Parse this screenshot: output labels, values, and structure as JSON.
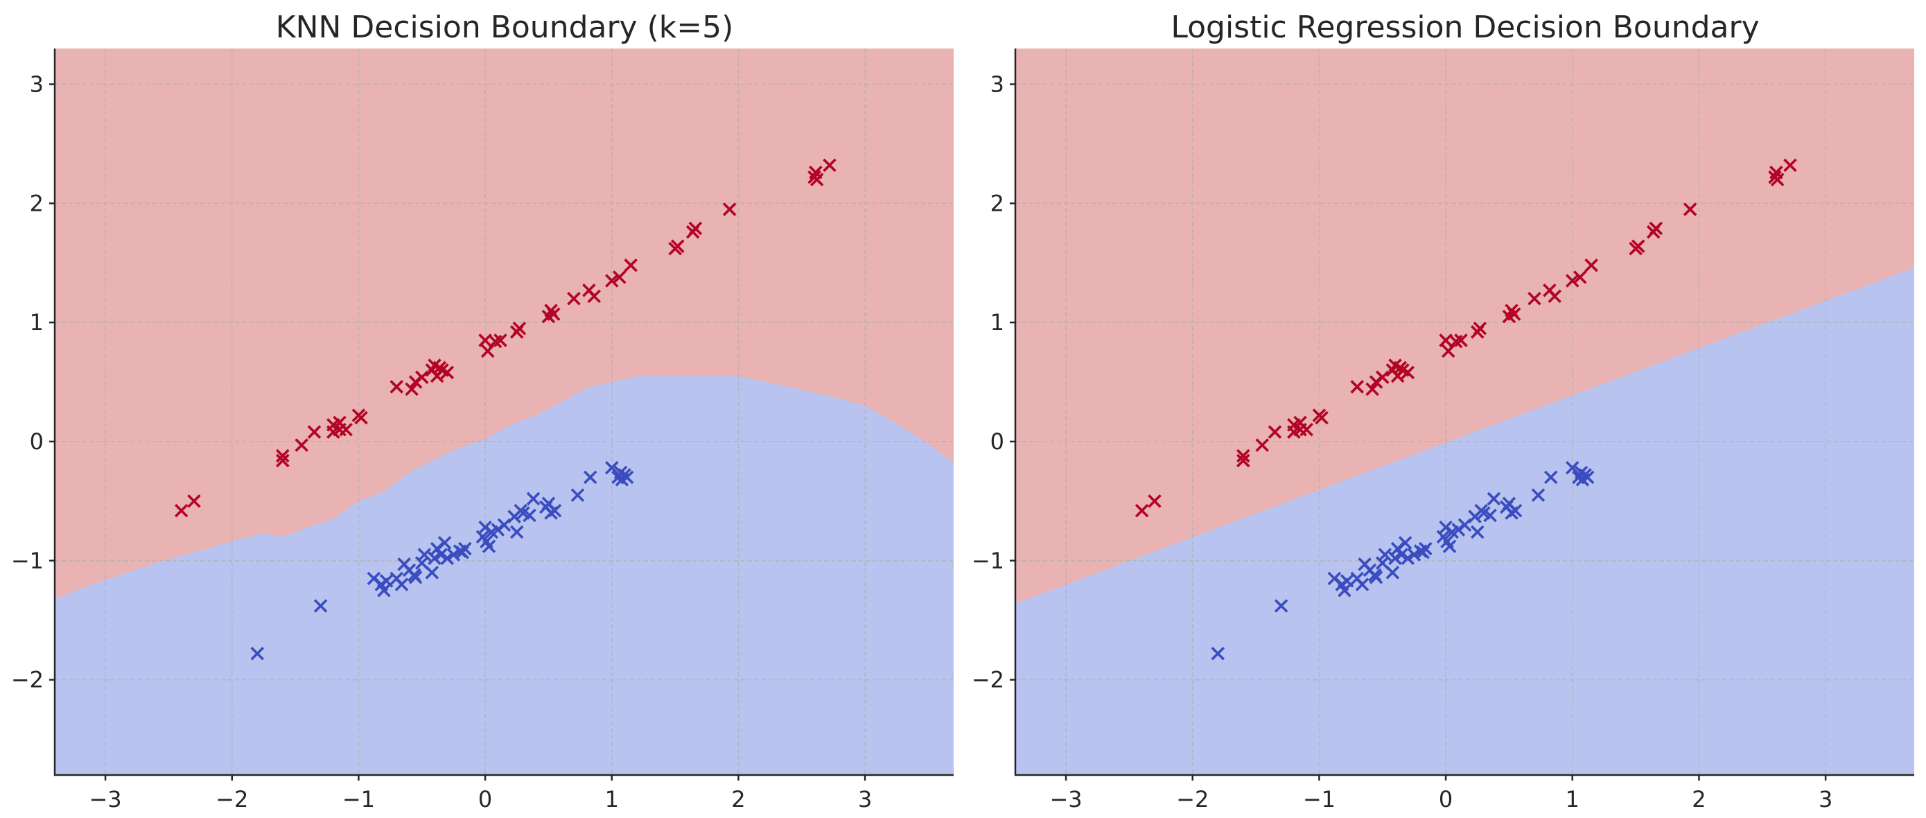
{
  "chart_data": [
    {
      "type": "scatter",
      "title": "KNN Decision Boundary (k=5)",
      "xlabel": "",
      "ylabel": "",
      "xlim": [
        -3.4,
        3.7
      ],
      "ylim": [
        -2.8,
        3.3
      ],
      "xticks": [
        -3,
        -2,
        -1,
        0,
        1,
        2,
        3
      ],
      "yticks": [
        -2,
        -1,
        0,
        1,
        2,
        3
      ],
      "xtick_labels": [
        "−3",
        "−2",
        "−1",
        "0",
        "1",
        "2",
        "3"
      ],
      "ytick_labels": [
        "−2",
        "−1",
        "0",
        "1",
        "2",
        "3"
      ],
      "grid": true,
      "region_colors": {
        "upper": "#e8b3b2",
        "lower": "#b8c4ef"
      },
      "boundary": [
        [
          -3.4,
          -1.32
        ],
        [
          -3.0,
          -1.16
        ],
        [
          -2.6,
          -1.02
        ],
        [
          -2.2,
          -0.9
        ],
        [
          -1.95,
          -0.82
        ],
        [
          -1.75,
          -0.77
        ],
        [
          -1.6,
          -0.8
        ],
        [
          -1.4,
          -0.72
        ],
        [
          -1.2,
          -0.65
        ],
        [
          -1.0,
          -0.5
        ],
        [
          -0.8,
          -0.42
        ],
        [
          -0.6,
          -0.26
        ],
        [
          -0.4,
          -0.15
        ],
        [
          -0.2,
          -0.05
        ],
        [
          0.0,
          0.02
        ],
        [
          0.2,
          0.14
        ],
        [
          0.4,
          0.22
        ],
        [
          0.6,
          0.33
        ],
        [
          0.8,
          0.45
        ],
        [
          1.0,
          0.5
        ],
        [
          1.2,
          0.55
        ],
        [
          1.6,
          0.55
        ],
        [
          2.0,
          0.55
        ],
        [
          2.4,
          0.46
        ],
        [
          2.8,
          0.36
        ],
        [
          3.0,
          0.3
        ],
        [
          3.2,
          0.18
        ],
        [
          3.4,
          0.05
        ],
        [
          3.55,
          -0.06
        ],
        [
          3.7,
          -0.18
        ]
      ]
    },
    {
      "type": "scatter",
      "title": "Logistic Regression Decision Boundary",
      "xlabel": "",
      "ylabel": "",
      "xlim": [
        -3.4,
        3.7
      ],
      "ylim": [
        -2.8,
        3.3
      ],
      "xticks": [
        -3,
        -2,
        -1,
        0,
        1,
        2,
        3
      ],
      "yticks": [
        -2,
        -1,
        0,
        1,
        2,
        3
      ],
      "xtick_labels": [
        "−3",
        "−2",
        "−1",
        "0",
        "1",
        "2",
        "3"
      ],
      "ytick_labels": [
        "−2",
        "−1",
        "0",
        "1",
        "2",
        "3"
      ],
      "grid": true,
      "region_colors": {
        "upper": "#e8b3b2",
        "lower": "#b8c4ef"
      },
      "boundary": [
        [
          -3.4,
          -1.36
        ],
        [
          3.7,
          1.46
        ]
      ]
    }
  ],
  "marker": "x",
  "point_classes": [
    {
      "class": 1,
      "color": "#b40426",
      "points": [
        [
          -2.4,
          -0.58
        ],
        [
          -2.3,
          -0.5
        ],
        [
          -1.6,
          -0.12
        ],
        [
          -1.6,
          -0.16
        ],
        [
          -1.45,
          -0.03
        ],
        [
          -1.35,
          0.08
        ],
        [
          -1.2,
          0.14
        ],
        [
          -1.2,
          0.08
        ],
        [
          -1.15,
          0.16
        ],
        [
          -1.15,
          0.1
        ],
        [
          -1.1,
          0.1
        ],
        [
          -1.0,
          0.22
        ],
        [
          -0.98,
          0.2
        ],
        [
          -0.7,
          0.46
        ],
        [
          -0.58,
          0.44
        ],
        [
          -0.55,
          0.5
        ],
        [
          -0.5,
          0.54
        ],
        [
          -0.42,
          0.6
        ],
        [
          -0.4,
          0.64
        ],
        [
          -0.38,
          0.55
        ],
        [
          -0.36,
          0.62
        ],
        [
          -0.34,
          0.6
        ],
        [
          -0.3,
          0.58
        ],
        [
          0.0,
          0.85
        ],
        [
          0.02,
          0.76
        ],
        [
          0.08,
          0.84
        ],
        [
          0.12,
          0.85
        ],
        [
          0.25,
          0.92
        ],
        [
          0.27,
          0.95
        ],
        [
          0.5,
          1.05
        ],
        [
          0.52,
          1.1
        ],
        [
          0.54,
          1.07
        ],
        [
          0.7,
          1.2
        ],
        [
          0.82,
          1.27
        ],
        [
          0.86,
          1.22
        ],
        [
          1.0,
          1.35
        ],
        [
          1.06,
          1.38
        ],
        [
          1.15,
          1.48
        ],
        [
          1.5,
          1.62
        ],
        [
          1.52,
          1.64
        ],
        [
          1.64,
          1.76
        ],
        [
          1.66,
          1.79
        ],
        [
          1.93,
          1.95
        ],
        [
          2.6,
          2.22
        ],
        [
          2.61,
          2.26
        ],
        [
          2.62,
          2.2
        ],
        [
          2.72,
          2.32
        ]
      ]
    },
    {
      "class": 0,
      "color": "#3b4cc0",
      "points": [
        [
          -1.8,
          -1.78
        ],
        [
          -1.3,
          -1.38
        ],
        [
          -0.88,
          -1.15
        ],
        [
          -0.82,
          -1.2
        ],
        [
          -0.8,
          -1.25
        ],
        [
          -0.78,
          -1.17
        ],
        [
          -0.7,
          -1.15
        ],
        [
          -0.66,
          -1.2
        ],
        [
          -0.64,
          -1.03
        ],
        [
          -0.6,
          -1.08
        ],
        [
          -0.56,
          -1.12
        ],
        [
          -0.55,
          -1.14
        ],
        [
          -0.5,
          -1.02
        ],
        [
          -0.48,
          -0.95
        ],
        [
          -0.42,
          -1.1
        ],
        [
          -0.4,
          -0.98
        ],
        [
          -0.38,
          -0.9
        ],
        [
          -0.35,
          -0.95
        ],
        [
          -0.32,
          -0.85
        ],
        [
          -0.3,
          -0.98
        ],
        [
          -0.25,
          -0.95
        ],
        [
          -0.2,
          -0.92
        ],
        [
          -0.18,
          -0.93
        ],
        [
          -0.16,
          -0.9
        ],
        [
          -0.02,
          -0.8
        ],
        [
          0.0,
          -0.72
        ],
        [
          0.01,
          -0.84
        ],
        [
          0.03,
          -0.88
        ],
        [
          0.05,
          -0.76
        ],
        [
          0.1,
          -0.74
        ],
        [
          0.15,
          -0.7
        ],
        [
          0.23,
          -0.63
        ],
        [
          0.25,
          -0.76
        ],
        [
          0.28,
          -0.58
        ],
        [
          0.3,
          -0.6
        ],
        [
          0.35,
          -0.62
        ],
        [
          0.38,
          -0.48
        ],
        [
          0.48,
          -0.55
        ],
        [
          0.5,
          -0.52
        ],
        [
          0.52,
          -0.6
        ],
        [
          0.55,
          -0.58
        ],
        [
          0.73,
          -0.45
        ],
        [
          0.83,
          -0.3
        ],
        [
          1.0,
          -0.22
        ],
        [
          1.05,
          -0.3
        ],
        [
          1.07,
          -0.26
        ],
        [
          1.08,
          -0.32
        ],
        [
          1.1,
          -0.28
        ],
        [
          1.12,
          -0.3
        ]
      ]
    }
  ]
}
